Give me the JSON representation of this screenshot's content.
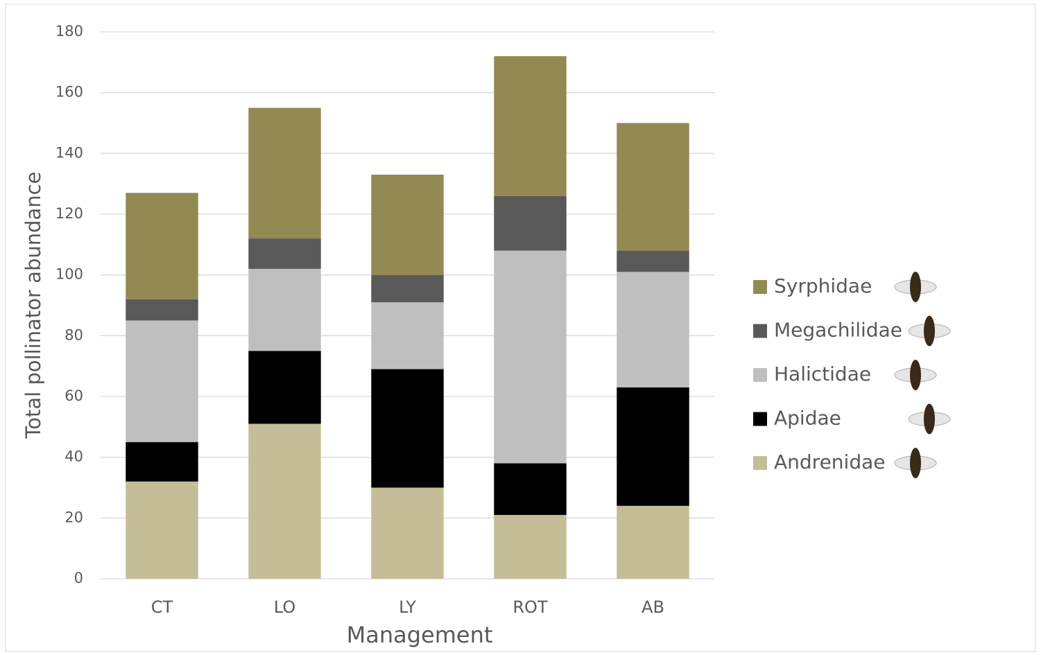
{
  "chart_data": {
    "type": "bar",
    "stacked": true,
    "x_label": "Management",
    "y_label": "Total pollinator abundance",
    "categories": [
      "CT",
      "LO",
      "LY",
      "ROT",
      "AB"
    ],
    "series": [
      {
        "name": "Andrenidae",
        "color": "#c4bd97",
        "values": [
          32,
          51,
          30,
          21,
          24
        ]
      },
      {
        "name": "Apidae",
        "color": "#000000",
        "values": [
          13,
          24,
          39,
          17,
          39
        ]
      },
      {
        "name": "Halictidae",
        "color": "#bfbfbf",
        "values": [
          40,
          27,
          22,
          70,
          38
        ]
      },
      {
        "name": "Megachilidae",
        "color": "#595959",
        "values": [
          7,
          10,
          9,
          18,
          7
        ]
      },
      {
        "name": "Syrphidae",
        "color": "#938953",
        "values": [
          35,
          43,
          33,
          46,
          42
        ]
      }
    ],
    "ylim": [
      0,
      180
    ],
    "yticks": [
      0,
      20,
      40,
      60,
      80,
      100,
      120,
      140,
      160,
      180
    ],
    "grid": true,
    "legend": "right"
  }
}
